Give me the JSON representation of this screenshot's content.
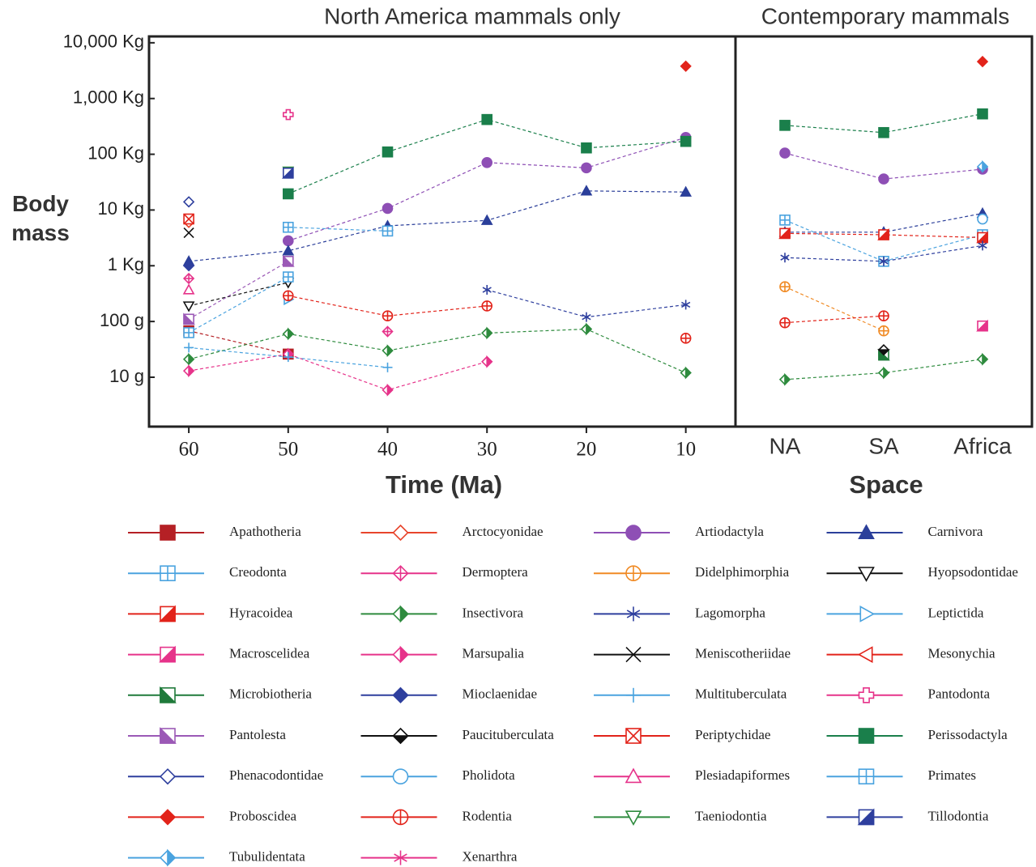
{
  "chart_data": [
    {
      "type": "line",
      "title": "North America mammals only",
      "x_label": "Time (Ma)",
      "y_label": "Body mass",
      "x": [
        60,
        50,
        40,
        30,
        20,
        10
      ],
      "xlim": [
        64,
        5
      ],
      "xticks": [
        60,
        50,
        40,
        30,
        20,
        10
      ],
      "yscale": "log",
      "ylim": [
        0.0013,
        13000
      ],
      "yticks": [
        {
          "value": 0.01,
          "label": "10 g"
        },
        {
          "value": 0.1,
          "label": "100 g"
        },
        {
          "value": 1,
          "label": "1 Kg"
        },
        {
          "value": 10,
          "label": "10 Kg"
        },
        {
          "value": 100,
          "label": "100 Kg"
        },
        {
          "value": 1000,
          "label": "1,000 Kg"
        },
        {
          "value": 10000,
          "label": "10,000 Kg"
        }
      ],
      "series": [
        {
          "name": "Apathotheria",
          "color": "#b52025",
          "marker": "square-filled",
          "values": [
            0.068,
            0.026,
            null,
            null,
            null,
            null
          ]
        },
        {
          "name": "Arctocyonidae",
          "color": "#e8452c",
          "marker": "diamond-open",
          "values": [
            6.0,
            null,
            null,
            null,
            null,
            null
          ]
        },
        {
          "name": "Artiodactyla",
          "color": "#8e4fb5",
          "marker": "circle-filled",
          "values": [
            null,
            2.8,
            10.7,
            71,
            57,
            200
          ]
        },
        {
          "name": "Carnivora",
          "color": "#2b3f9a",
          "marker": "triangle-filled",
          "values": [
            1.2,
            1.85,
            5.2,
            6.5,
            22,
            21
          ]
        },
        {
          "name": "Creodonta",
          "color": "#4aa3df",
          "marker": "square-plus",
          "values": [
            null,
            4.9,
            4.2,
            null,
            null,
            null
          ]
        },
        {
          "name": "Dermoptera",
          "color": "#e6338a",
          "marker": "diamond-plus",
          "values": [
            0.59,
            null,
            0.066,
            null,
            null,
            null
          ]
        },
        {
          "name": "Didelphimorphia",
          "color": "#f08a24",
          "marker": "circle-plus",
          "values": [
            null,
            null,
            null,
            null,
            null,
            null
          ]
        },
        {
          "name": "Hyopsodontidae",
          "color": "#111111",
          "marker": "triangle-down-open",
          "values": [
            0.19,
            0.5,
            null,
            null,
            null,
            null
          ]
        },
        {
          "name": "Hyracoidea",
          "color": "#e2231a",
          "marker": "half-square",
          "values": [
            null,
            null,
            null,
            null,
            null,
            null
          ]
        },
        {
          "name": "Insectivora",
          "color": "#2e8b3e",
          "marker": "half-diamond",
          "values": [
            0.021,
            0.06,
            0.03,
            0.062,
            0.073,
            0.012
          ]
        },
        {
          "name": "Lagomorpha",
          "color": "#2e3f9e",
          "marker": "asterisk",
          "values": [
            null,
            null,
            null,
            0.37,
            0.12,
            0.2
          ]
        },
        {
          "name": "Leptictida",
          "color": "#4aa3df",
          "marker": "triangle-right-open",
          "values": [
            null,
            0.25,
            null,
            null,
            null,
            null
          ]
        },
        {
          "name": "Macroscelidea",
          "color": "#e6338a",
          "marker": "half-square",
          "values": [
            null,
            null,
            null,
            null,
            null,
            null
          ]
        },
        {
          "name": "Marsupalia",
          "color": "#e6338a",
          "marker": "half-diamond",
          "values": [
            0.013,
            0.026,
            0.0059,
            0.019,
            null,
            null
          ]
        },
        {
          "name": "Meniscotheriidae",
          "color": "#111111",
          "marker": "x",
          "values": [
            3.9,
            null,
            null,
            null,
            null,
            null
          ]
        },
        {
          "name": "Mesonychia",
          "color": "#e2231a",
          "marker": "triangle-left-open",
          "values": [
            null,
            null,
            null,
            null,
            null,
            null
          ]
        },
        {
          "name": "Microbiotheria",
          "color": "#1f7a3a",
          "marker": "half-square-b",
          "values": [
            null,
            null,
            null,
            null,
            null,
            null
          ]
        },
        {
          "name": "Mioclaenidae",
          "color": "#2e3f9e",
          "marker": "diamond-filled",
          "values": [
            1.0,
            null,
            null,
            null,
            null,
            null
          ]
        },
        {
          "name": "Multituberculata",
          "color": "#4aa3df",
          "marker": "plus",
          "values": [
            0.034,
            0.023,
            0.015,
            null,
            null,
            null
          ]
        },
        {
          "name": "Pantodonta",
          "color": "#e6338a",
          "marker": "cross-open",
          "values": [
            null,
            515,
            null,
            null,
            null,
            null
          ]
        },
        {
          "name": "Pantolesta",
          "color": "#9b59b6",
          "marker": "half-square-b",
          "values": [
            0.11,
            1.2,
            null,
            null,
            null,
            null
          ]
        },
        {
          "name": "Paucituberculata",
          "color": "#111111",
          "marker": "half-diamond-h",
          "values": [
            null,
            null,
            null,
            null,
            null,
            null
          ]
        },
        {
          "name": "Periptychidae",
          "color": "#e2231a",
          "marker": "square-x",
          "values": [
            6.9,
            null,
            null,
            null,
            null,
            null
          ]
        },
        {
          "name": "Perissodactyla",
          "color": "#1a7f4b",
          "marker": "square-filled",
          "values": [
            null,
            19.5,
            110,
            420,
            130,
            170
          ]
        },
        {
          "name": "Phenacodontidae",
          "color": "#2e3f9e",
          "marker": "diamond-open",
          "values": [
            14,
            null,
            null,
            null,
            null,
            null
          ]
        },
        {
          "name": "Pholidota",
          "color": "#4aa3df",
          "marker": "circle-open",
          "values": [
            null,
            null,
            null,
            null,
            null,
            null
          ]
        },
        {
          "name": "Plesiadapiformes",
          "color": "#e6338a",
          "marker": "triangle-open",
          "values": [
            0.37,
            null,
            null,
            null,
            null,
            null
          ]
        },
        {
          "name": "Primates",
          "color": "#4aa3df",
          "marker": "square-plus",
          "values": [
            0.063,
            0.63,
            null,
            null,
            null,
            null
          ]
        },
        {
          "name": "Proboscidea",
          "color": "#e2231a",
          "marker": "diamond-filled",
          "values": [
            null,
            null,
            null,
            null,
            null,
            3800
          ]
        },
        {
          "name": "Rodentia",
          "color": "#e2231a",
          "marker": "circle-plus",
          "values": [
            null,
            0.29,
            0.126,
            0.19,
            null,
            0.05
          ]
        },
        {
          "name": "Taeniodontia",
          "color": "#2e8b3e",
          "marker": "triangle-down-open",
          "values": [
            null,
            50,
            null,
            null,
            null,
            null
          ]
        },
        {
          "name": "Tillodontia",
          "color": "#2e3f9e",
          "marker": "half-square",
          "values": [
            null,
            46,
            null,
            null,
            null,
            null
          ]
        },
        {
          "name": "Tubulidentata",
          "color": "#4aa3df",
          "marker": "half-diamond",
          "values": [
            null,
            null,
            null,
            null,
            null,
            null
          ]
        },
        {
          "name": "Xenarthra",
          "color": "#e6338a",
          "marker": "asterisk",
          "values": [
            null,
            null,
            null,
            null,
            null,
            null
          ]
        }
      ]
    },
    {
      "type": "line",
      "title": "Contemporary mammals",
      "x_label": "Space",
      "categories": [
        "NA",
        "SA",
        "Africa"
      ],
      "series": [
        {
          "values": [
            null,
            null,
            null
          ]
        },
        {
          "values": [
            null,
            null,
            null
          ]
        },
        {
          "values": [
            105,
            36,
            54
          ]
        },
        {
          "values": [
            4.0,
            4.0,
            8.7
          ]
        },
        {
          "values": [
            6.6,
            1.2,
            3.6
          ]
        },
        {
          "values": [
            null,
            null,
            null
          ]
        },
        {
          "values": [
            0.42,
            0.068,
            null
          ]
        },
        {
          "values": [
            null,
            null,
            null
          ]
        },
        {
          "values": [
            3.8,
            3.6,
            3.2
          ]
        },
        {
          "values": [
            0.0091,
            0.012,
            0.021
          ]
        },
        {
          "values": [
            1.4,
            1.2,
            2.3
          ]
        },
        {
          "values": [
            null,
            null,
            null
          ]
        },
        {
          "values": [
            null,
            null,
            0.083
          ]
        },
        {
          "values": [
            null,
            null,
            null
          ]
        },
        {
          "values": [
            null,
            null,
            null
          ]
        },
        {
          "values": [
            null,
            null,
            null
          ]
        },
        {
          "values": [
            null,
            0.025,
            null
          ]
        },
        {
          "values": [
            null,
            null,
            null
          ]
        },
        {
          "values": [
            null,
            null,
            null
          ]
        },
        {
          "values": [
            null,
            null,
            null
          ]
        },
        {
          "values": [
            null,
            null,
            null
          ]
        },
        {
          "values": [
            null,
            0.031,
            null
          ]
        },
        {
          "values": [
            null,
            null,
            null
          ]
        },
        {
          "values": [
            330,
            245,
            530
          ]
        },
        {
          "values": [
            null,
            null,
            null
          ]
        },
        {
          "values": [
            null,
            null,
            6.9
          ]
        },
        {
          "values": [
            null,
            null,
            null
          ]
        },
        {
          "values": [
            null,
            null,
            null
          ]
        },
        {
          "values": [
            null,
            null,
            4600
          ]
        },
        {
          "values": [
            0.095,
            0.126,
            null
          ]
        },
        {
          "values": [
            null,
            null,
            null
          ]
        },
        {
          "values": [
            null,
            null,
            null
          ]
        },
        {
          "values": [
            null,
            null,
            60
          ]
        },
        {
          "values": [
            null,
            null,
            null
          ]
        }
      ]
    }
  ]
}
